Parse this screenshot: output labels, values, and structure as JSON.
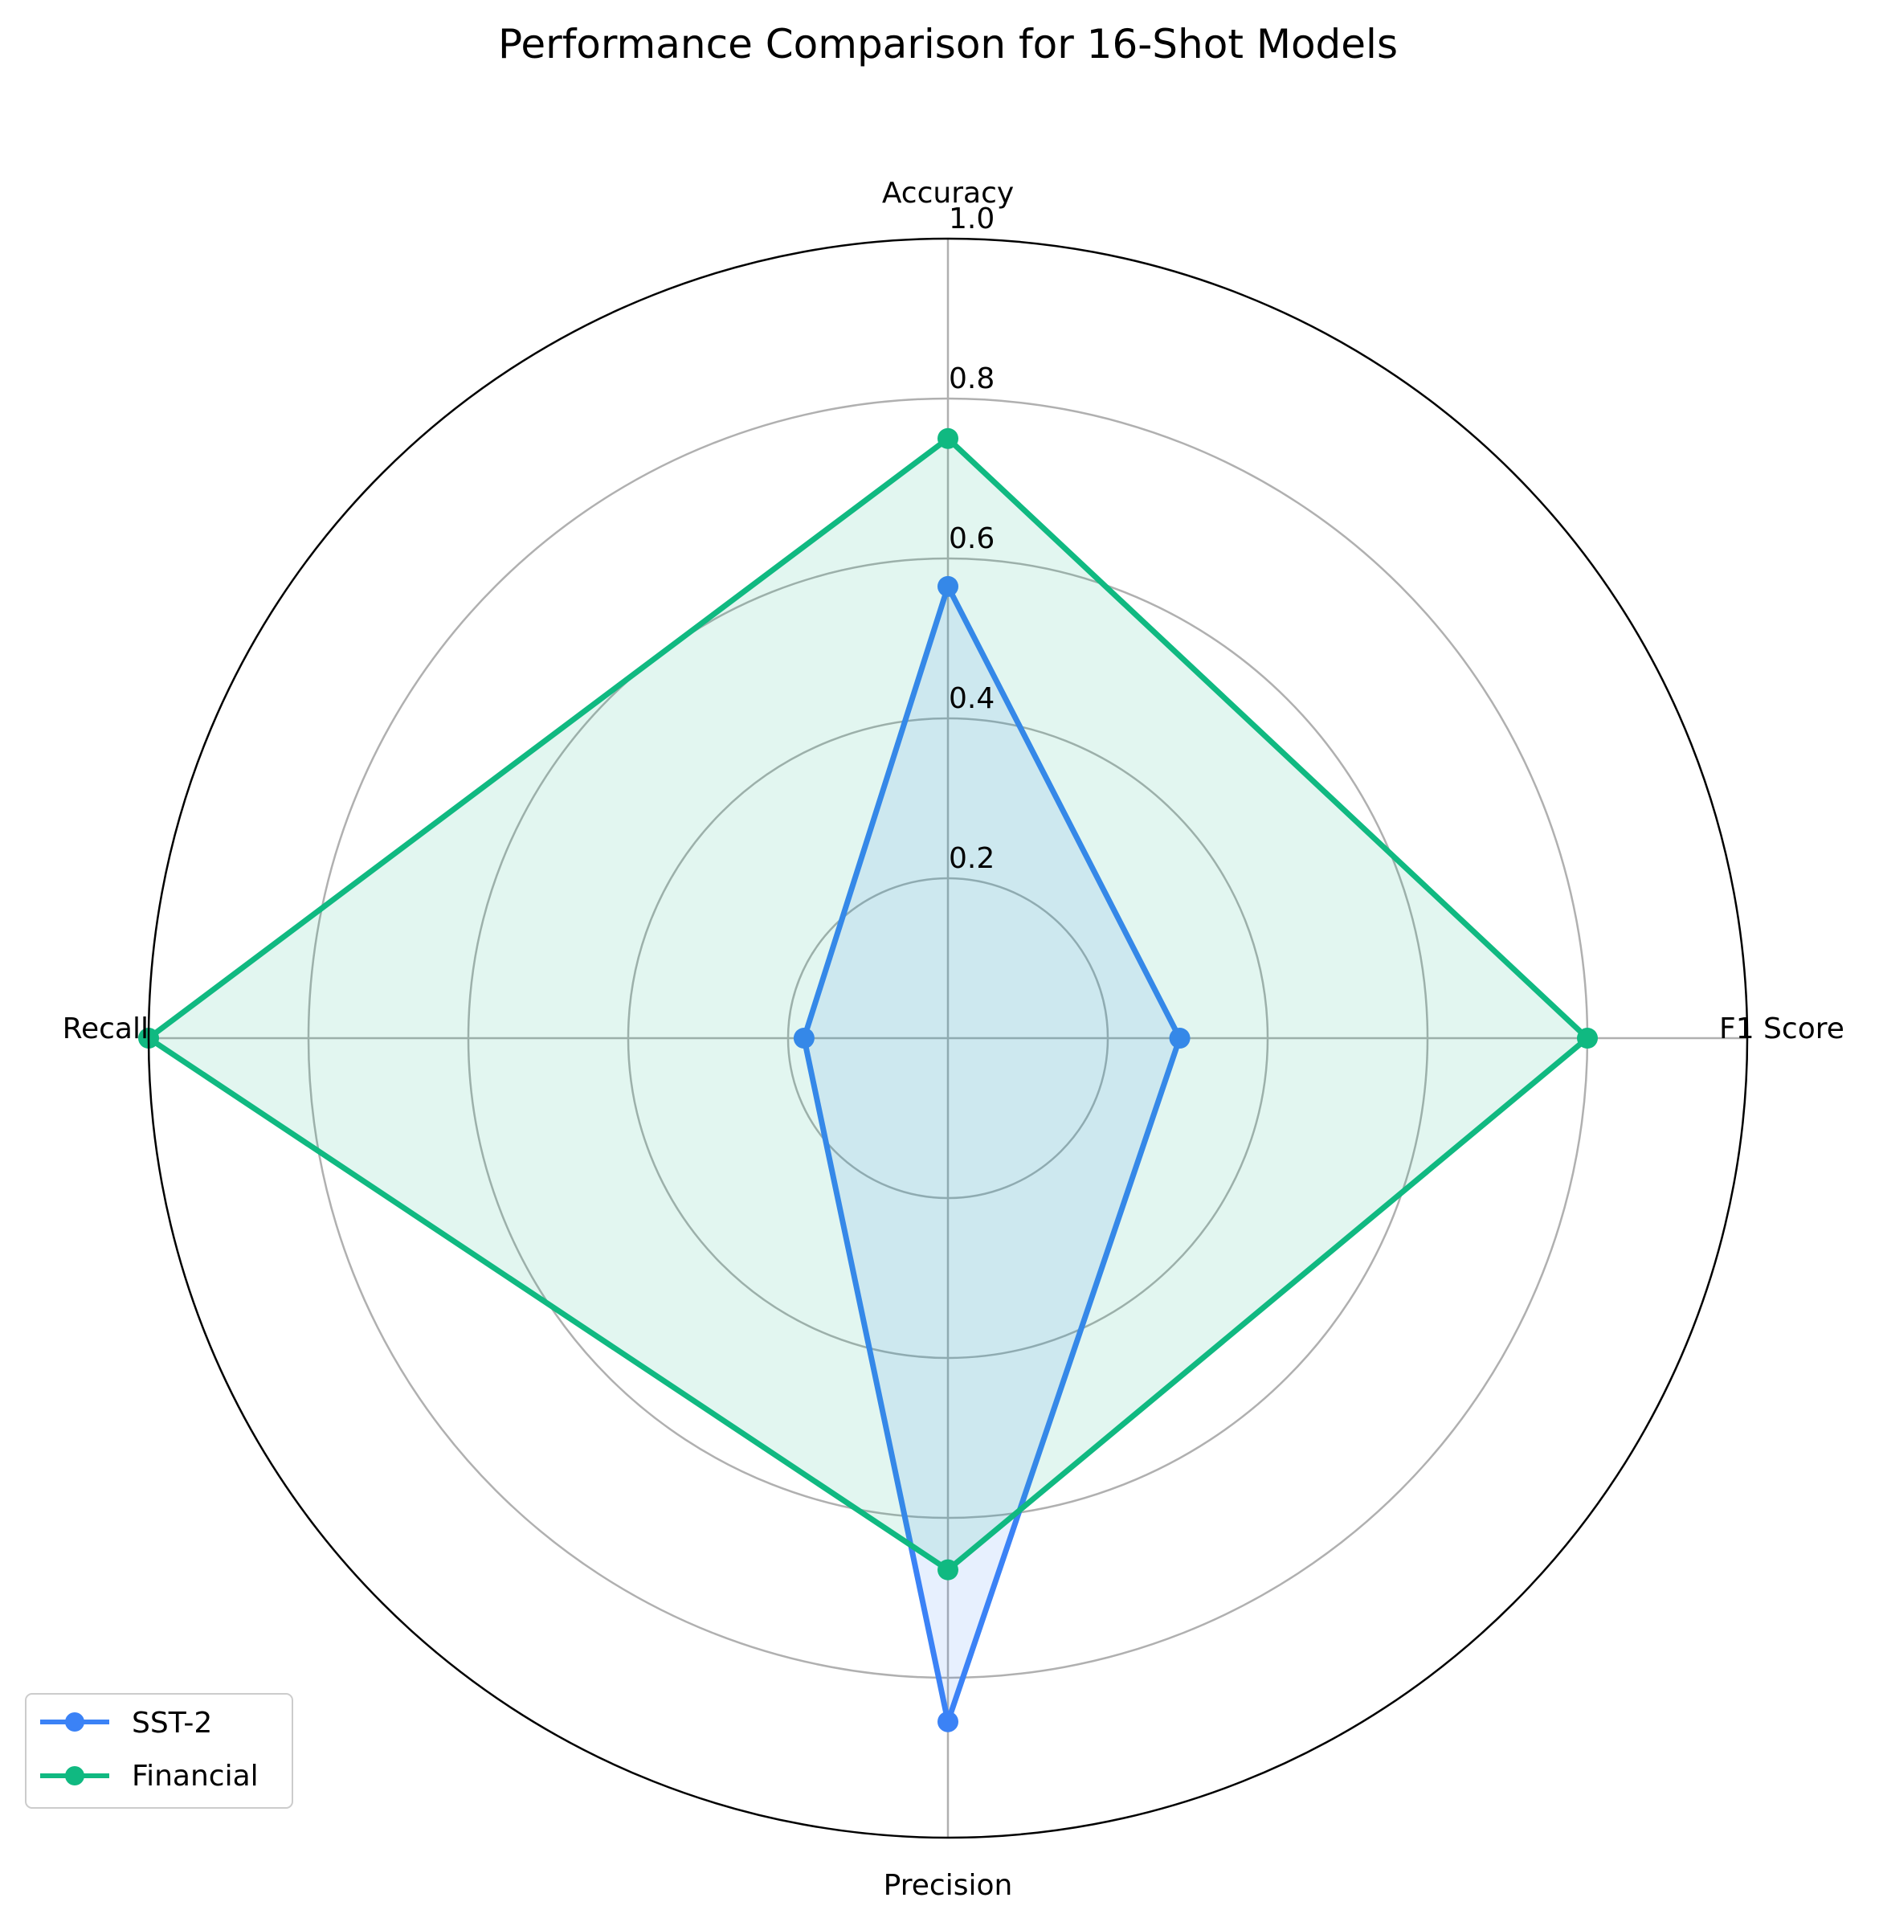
{
  "chart_data": {
    "type": "radar",
    "title": "Performance Comparison for 16-Shot Models",
    "axes": [
      "Accuracy",
      "F1 Score",
      "Precision",
      "Recall"
    ],
    "r_ticks": [
      "0.2",
      "0.4",
      "0.6",
      "0.8",
      "1.0"
    ],
    "rlim": [
      0,
      1.0
    ],
    "grid": true,
    "legend_position": "lower-left",
    "series": [
      {
        "name": "SST-2",
        "values": [
          0.565,
          0.29,
          0.855,
          0.18
        ],
        "color": "#3b82f6",
        "fill": "#dbe7fd"
      },
      {
        "name": "Financial",
        "values": [
          0.75,
          0.8,
          0.665,
          1.0
        ],
        "color": "#10b981",
        "fill": "#e6f7f1"
      }
    ]
  }
}
